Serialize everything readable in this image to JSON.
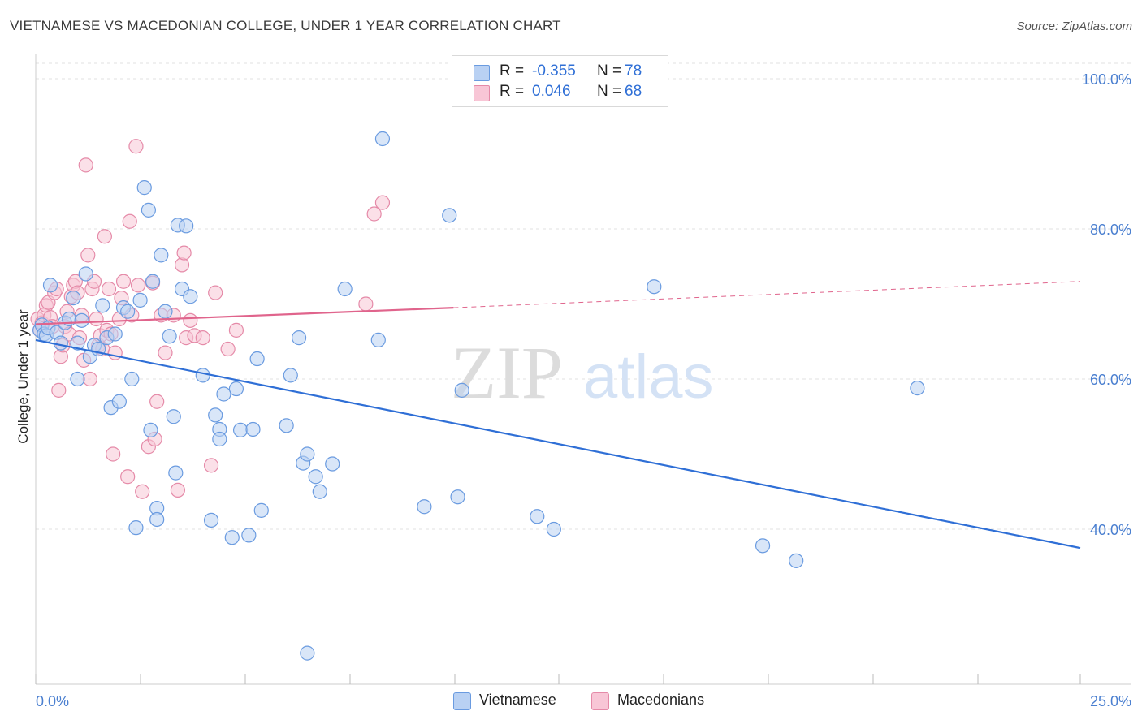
{
  "header": {
    "title": "VIETNAMESE VS MACEDONIAN COLLEGE, UNDER 1 YEAR CORRELATION CHART",
    "source": "Source: ZipAtlas.com"
  },
  "watermark": {
    "zip": "ZIP",
    "atlas": "atlas"
  },
  "legend": {
    "rows": [
      {
        "r_label": "R =",
        "r_value": "-0.355",
        "n_label": "N =",
        "n_value": "78",
        "color": "#b9d1f3",
        "border": "#6a9be0"
      },
      {
        "r_label": "R =",
        "r_value": "0.046",
        "n_label": "N =",
        "n_value": "68",
        "color": "#f8c6d6",
        "border": "#e58aa8"
      }
    ]
  },
  "bottom_legend": [
    {
      "label": "Vietnamese",
      "color": "#b9d1f3",
      "border": "#6a9be0"
    },
    {
      "label": "Macedonians",
      "color": "#f8c6d6",
      "border": "#e58aa8"
    }
  ],
  "chart_data": {
    "type": "scatter",
    "title": "VIETNAMESE VS MACEDONIAN COLLEGE, UNDER 1 YEAR CORRELATION CHART",
    "xlabel": "",
    "ylabel": "College, Under 1 year",
    "xlim": [
      0,
      25
    ],
    "ylim": [
      20,
      104
    ],
    "x_tick_labels": [
      "0.0%",
      "25.0%"
    ],
    "y_ticks": [
      40,
      60,
      80,
      100
    ],
    "y_tick_labels": [
      "40.0%",
      "60.0%",
      "80.0%",
      "100.0%"
    ],
    "grid": true,
    "series": [
      {
        "name": "Vietnamese",
        "color": "#6a9be0",
        "fill": "#b9d1f3",
        "trend": {
          "x": [
            0,
            25
          ],
          "y": [
            65.2,
            37.5
          ],
          "dashed_after": null,
          "color": "#2f6fd6"
        },
        "points": [
          [
            0.1,
            66.5
          ],
          [
            0.15,
            67.2
          ],
          [
            0.2,
            66.0
          ],
          [
            0.25,
            65.8
          ],
          [
            0.3,
            66.8
          ],
          [
            0.35,
            72.5
          ],
          [
            0.5,
            66.2
          ],
          [
            0.6,
            64.8
          ],
          [
            0.7,
            67.5
          ],
          [
            0.8,
            68.0
          ],
          [
            0.9,
            70.8
          ],
          [
            1.0,
            60.0
          ],
          [
            1.1,
            67.8
          ],
          [
            1.2,
            74.0
          ],
          [
            1.3,
            63.0
          ],
          [
            1.4,
            64.5
          ],
          [
            1.5,
            64.0
          ],
          [
            1.6,
            69.8
          ],
          [
            1.7,
            65.5
          ],
          [
            1.8,
            56.2
          ],
          [
            1.9,
            66.0
          ],
          [
            2.0,
            57.0
          ],
          [
            2.1,
            69.5
          ],
          [
            2.2,
            69.0
          ],
          [
            2.3,
            60.0
          ],
          [
            2.4,
            40.2
          ],
          [
            2.5,
            70.5
          ],
          [
            2.6,
            85.5
          ],
          [
            2.7,
            82.5
          ],
          [
            2.75,
            53.2
          ],
          [
            2.8,
            73.0
          ],
          [
            2.9,
            42.8
          ],
          [
            2.9,
            41.3
          ],
          [
            3.0,
            76.5
          ],
          [
            3.1,
            69.0
          ],
          [
            3.2,
            65.7
          ],
          [
            3.3,
            55.0
          ],
          [
            3.35,
            47.5
          ],
          [
            3.4,
            80.5
          ],
          [
            3.5,
            72.0
          ],
          [
            3.6,
            80.4
          ],
          [
            3.7,
            71.0
          ],
          [
            4.0,
            60.5
          ],
          [
            4.2,
            41.2
          ],
          [
            4.3,
            55.2
          ],
          [
            4.4,
            53.3
          ],
          [
            4.4,
            52.0
          ],
          [
            4.5,
            58.0
          ],
          [
            4.7,
            38.9
          ],
          [
            4.8,
            58.7
          ],
          [
            4.9,
            53.2
          ],
          [
            5.1,
            39.2
          ],
          [
            5.2,
            53.3
          ],
          [
            5.3,
            62.7
          ],
          [
            5.4,
            42.5
          ],
          [
            6.0,
            53.8
          ],
          [
            6.1,
            60.5
          ],
          [
            6.3,
            65.5
          ],
          [
            6.4,
            48.8
          ],
          [
            6.5,
            50.0
          ],
          [
            6.5,
            23.5
          ],
          [
            6.7,
            47.0
          ],
          [
            6.8,
            45.0
          ],
          [
            7.1,
            48.7
          ],
          [
            7.4,
            72.0
          ],
          [
            8.2,
            65.2
          ],
          [
            8.3,
            92.0
          ],
          [
            9.3,
            43.0
          ],
          [
            9.9,
            81.8
          ],
          [
            10.1,
            44.3
          ],
          [
            10.2,
            58.5
          ],
          [
            12.0,
            41.7
          ],
          [
            12.4,
            40.0
          ],
          [
            14.8,
            72.3
          ],
          [
            17.4,
            37.8
          ],
          [
            18.2,
            35.8
          ],
          [
            21.1,
            58.8
          ],
          [
            1.0,
            64.8
          ]
        ]
      },
      {
        "name": "Macedonians",
        "color": "#e58aa8",
        "fill": "#f8c6d6",
        "trend": {
          "x": [
            0,
            10.0,
            25
          ],
          "y": [
            67.3,
            69.5,
            73.0
          ],
          "dashed_after": 10.0,
          "color": "#e0648c"
        },
        "points": [
          [
            0.05,
            68.0
          ],
          [
            0.1,
            66.5
          ],
          [
            0.15,
            67.5
          ],
          [
            0.2,
            68.5
          ],
          [
            0.25,
            69.8
          ],
          [
            0.3,
            70.2
          ],
          [
            0.35,
            68.2
          ],
          [
            0.4,
            67.0
          ],
          [
            0.45,
            71.5
          ],
          [
            0.5,
            72.0
          ],
          [
            0.55,
            58.5
          ],
          [
            0.6,
            63.0
          ],
          [
            0.65,
            64.5
          ],
          [
            0.7,
            67.0
          ],
          [
            0.75,
            69.0
          ],
          [
            0.8,
            66.0
          ],
          [
            0.85,
            71.0
          ],
          [
            0.9,
            72.5
          ],
          [
            0.95,
            73.0
          ],
          [
            1.0,
            71.5
          ],
          [
            1.05,
            65.5
          ],
          [
            1.1,
            68.5
          ],
          [
            1.15,
            62.5
          ],
          [
            1.2,
            88.5
          ],
          [
            1.25,
            76.5
          ],
          [
            1.3,
            60.0
          ],
          [
            1.35,
            72.0
          ],
          [
            1.4,
            73.0
          ],
          [
            1.45,
            68.0
          ],
          [
            1.5,
            64.5
          ],
          [
            1.55,
            65.8
          ],
          [
            1.6,
            64.0
          ],
          [
            1.65,
            79.0
          ],
          [
            1.7,
            66.5
          ],
          [
            1.75,
            72.0
          ],
          [
            1.8,
            66.0
          ],
          [
            1.85,
            50.0
          ],
          [
            1.9,
            63.5
          ],
          [
            2.0,
            68.0
          ],
          [
            2.05,
            70.8
          ],
          [
            2.1,
            73.0
          ],
          [
            2.2,
            47.0
          ],
          [
            2.25,
            81.0
          ],
          [
            2.3,
            68.5
          ],
          [
            2.4,
            91.0
          ],
          [
            2.45,
            72.5
          ],
          [
            2.55,
            45.0
          ],
          [
            2.7,
            51.0
          ],
          [
            2.8,
            72.8
          ],
          [
            2.85,
            52.0
          ],
          [
            2.9,
            57.0
          ],
          [
            3.0,
            68.5
          ],
          [
            3.1,
            63.5
          ],
          [
            3.3,
            68.5
          ],
          [
            3.4,
            45.2
          ],
          [
            3.5,
            75.2
          ],
          [
            3.55,
            76.8
          ],
          [
            3.6,
            65.5
          ],
          [
            3.7,
            67.8
          ],
          [
            3.8,
            65.8
          ],
          [
            4.0,
            65.5
          ],
          [
            4.2,
            48.5
          ],
          [
            4.3,
            71.5
          ],
          [
            4.6,
            64.0
          ],
          [
            4.8,
            66.5
          ],
          [
            7.9,
            70.0
          ],
          [
            8.1,
            82.0
          ],
          [
            8.3,
            83.5
          ]
        ]
      }
    ]
  }
}
